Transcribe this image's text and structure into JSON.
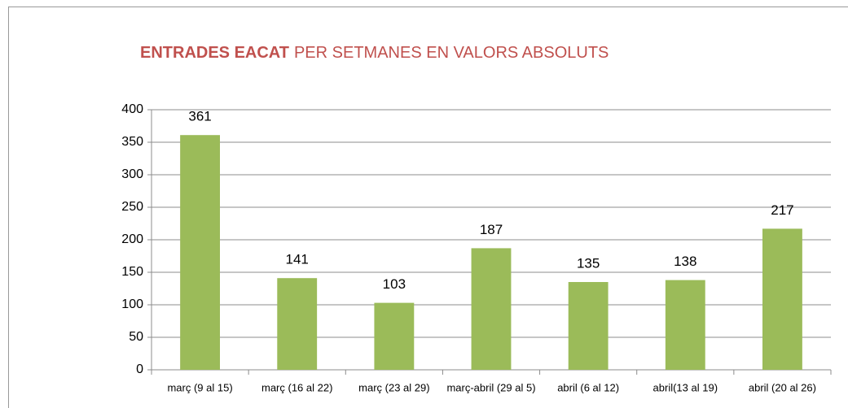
{
  "chart_data": {
    "type": "bar",
    "title": [
      "ENTRADES EACAT",
      "PER SETMANES EN VALORS ABSOLUTS"
    ],
    "categories": [
      "març (9 al 15)",
      "març (16 al 22)",
      "març (23 al 29)",
      "març-abril (29 al 5)",
      "abril (6 al 12)",
      "abril(13 al 19)",
      "abril (20 al 26)"
    ],
    "values": [
      361,
      141,
      103,
      187,
      135,
      138,
      217
    ],
    "color": "#9bbb59",
    "ylim": [
      0,
      400
    ],
    "yticks": [
      0,
      50,
      100,
      150,
      200,
      250,
      300,
      350,
      400
    ],
    "grid": true,
    "data_labels": true
  }
}
